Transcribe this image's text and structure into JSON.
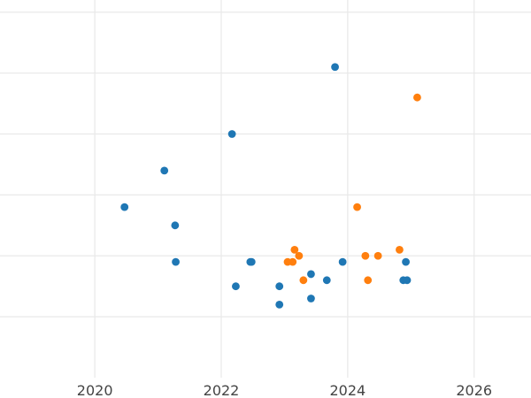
{
  "chart_data": {
    "type": "scatter",
    "title": "",
    "xlabel": "",
    "ylabel": "",
    "xlim": [
      2018.5,
      2026.9
    ],
    "ylim": [
      0,
      12.4
    ],
    "x_ticks": [
      2020,
      2022,
      2024,
      2026
    ],
    "x_tick_labels": [
      "2020",
      "2022",
      "2024",
      "2026"
    ],
    "y_gridlines": [
      2,
      4,
      6,
      8,
      10,
      12
    ],
    "grid": true,
    "legend": "none",
    "series": [
      {
        "color": "#1f77b4",
        "points": [
          {
            "x": 2020.47,
            "y": 5.6
          },
          {
            "x": 2021.1,
            "y": 6.8
          },
          {
            "x": 2021.27,
            "y": 5.0
          },
          {
            "x": 2021.28,
            "y": 3.8
          },
          {
            "x": 2022.17,
            "y": 8.0
          },
          {
            "x": 2022.23,
            "y": 3.0
          },
          {
            "x": 2022.46,
            "y": 3.8
          },
          {
            "x": 2022.48,
            "y": 3.8
          },
          {
            "x": 2022.92,
            "y": 3.0
          },
          {
            "x": 2022.92,
            "y": 2.4
          },
          {
            "x": 2023.42,
            "y": 3.4
          },
          {
            "x": 2023.42,
            "y": 2.6
          },
          {
            "x": 2023.67,
            "y": 3.2
          },
          {
            "x": 2023.8,
            "y": 10.2
          },
          {
            "x": 2023.92,
            "y": 3.8
          },
          {
            "x": 2024.88,
            "y": 3.2
          },
          {
            "x": 2024.92,
            "y": 3.8
          },
          {
            "x": 2024.94,
            "y": 3.2
          }
        ]
      },
      {
        "color": "#ff7f0e",
        "points": [
          {
            "x": 2023.05,
            "y": 3.8
          },
          {
            "x": 2023.13,
            "y": 3.8
          },
          {
            "x": 2023.16,
            "y": 4.2
          },
          {
            "x": 2023.23,
            "y": 4.0
          },
          {
            "x": 2023.3,
            "y": 3.2
          },
          {
            "x": 2024.15,
            "y": 5.6
          },
          {
            "x": 2024.28,
            "y": 4.0
          },
          {
            "x": 2024.32,
            "y": 3.2
          },
          {
            "x": 2024.48,
            "y": 4.0
          },
          {
            "x": 2024.82,
            "y": 4.2
          },
          {
            "x": 2025.1,
            "y": 9.2
          }
        ]
      }
    ]
  }
}
